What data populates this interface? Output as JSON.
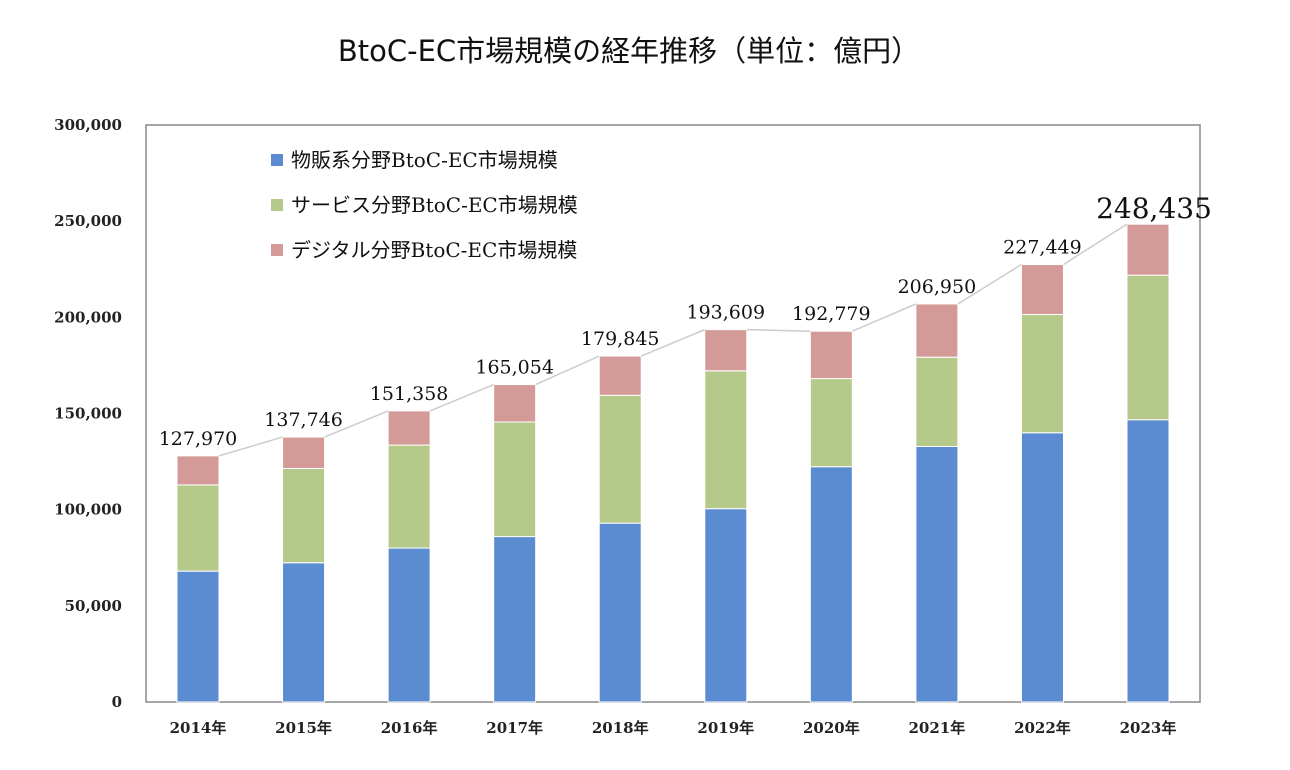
{
  "chart_data": {
    "type": "bar",
    "stacked": true,
    "title": "BtoC-EC市場規模の経年推移（単位：億円）",
    "categories": [
      "2014年",
      "2015年",
      "2016年",
      "2017年",
      "2018年",
      "2019年",
      "2020年",
      "2021年",
      "2022年",
      "2023年"
    ],
    "series": [
      {
        "name": "物販系分野BtoC-EC市場規模",
        "color": "#5b8bd0",
        "values": [
          68043,
          72398,
          80043,
          86008,
          92992,
          100515,
          122333,
          132865,
          139997,
          146760
        ]
      },
      {
        "name": "サービス分野BtoC-EC市場規模",
        "color": "#b5c98a",
        "values": [
          44816,
          49014,
          53532,
          59568,
          66471,
          71672,
          45832,
          46424,
          61477,
          75169
        ]
      },
      {
        "name": "デジタル分野BtoC-EC市場規模",
        "color": "#d49a98",
        "values": [
          15111,
          16334,
          17782,
          19478,
          20382,
          21422,
          24614,
          27661,
          25974,
          26506
        ]
      }
    ],
    "totals": [
      127970,
      137746,
      151358,
      165054,
      179845,
      193609,
      192779,
      206950,
      227449,
      248435
    ],
    "total_labels": [
      "127,970",
      "137,746",
      "151,358",
      "165,054",
      "179,845",
      "193,609",
      "192,779",
      "206,950",
      "227,449",
      "248,435"
    ],
    "ylim": [
      0,
      300000
    ],
    "yticks": [
      0,
      50000,
      100000,
      150000,
      200000,
      250000,
      300000
    ],
    "ytick_labels": [
      "0",
      "50,000",
      "100,000",
      "150,000",
      "200,000",
      "250,000",
      "300,000"
    ],
    "xlabel": "",
    "ylabel": "",
    "grid": false,
    "legend_position": "top-left",
    "total_line_color": "#cccccc"
  }
}
